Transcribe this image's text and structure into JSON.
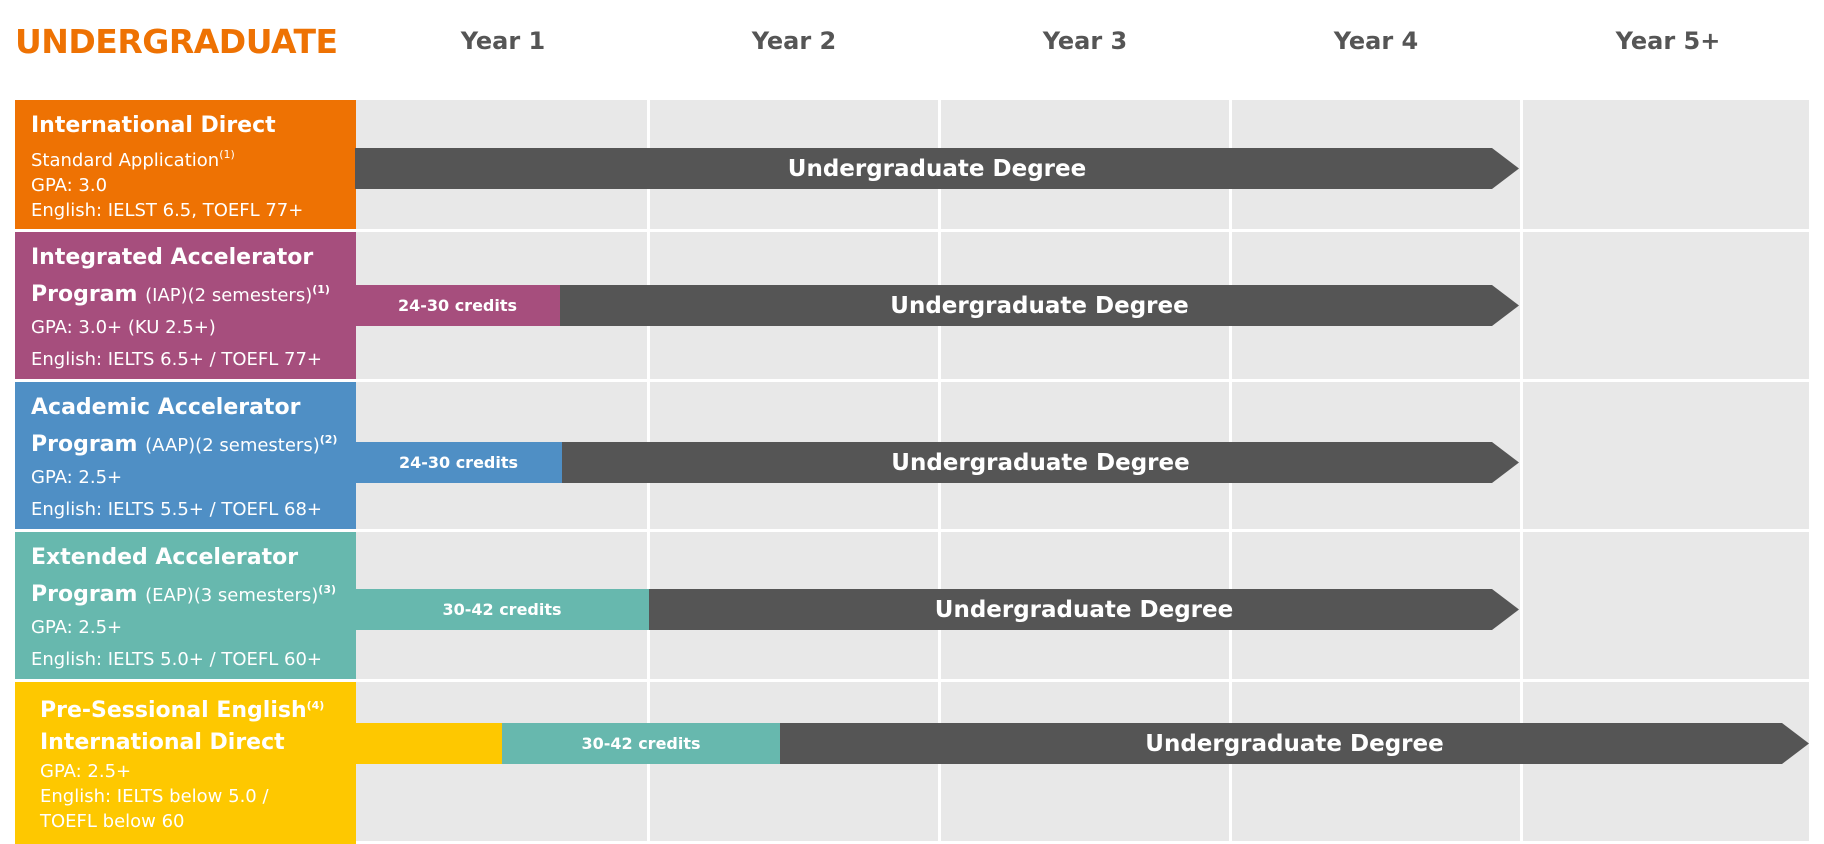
{
  "title": "UNDERGRADUATE",
  "years": [
    "Year 1",
    "Year 2",
    "Year 3",
    "Year 4",
    "Year 5+"
  ],
  "colors": {
    "title": "#ee7203",
    "international_direct": "#ee7203",
    "iap": "#a64e7d",
    "aap": "#4f8fc5",
    "eap": "#67b8ae",
    "pre_sessional": "#fec800",
    "degree_bar": "#555555",
    "grid": "#e8e8e8"
  },
  "rows": [
    {
      "name": "International Direct",
      "name_line2": "",
      "name_suffix": "",
      "sup": "",
      "line1": "Standard Application",
      "line1_sup": "(1)",
      "gpa": "GPA: 3.0",
      "english": "English: IELST 6.5, TOEFL 77+",
      "english2": "",
      "degree": "Undergraduate Degree"
    },
    {
      "name": "Integrated Accelerator",
      "name_line2": "Program",
      "name_suffix": "(IAP)(2 semesters)",
      "sup": "(1)",
      "gpa": "GPA: 3.0+ (KU 2.5+)",
      "english": "English: IELTS 6.5+ / TOEFL 77+",
      "english2": "",
      "credits": "24-30 credits",
      "degree": "Undergraduate Degree"
    },
    {
      "name": "Academic Accelerator",
      "name_line2": "Program",
      "name_suffix": "(AAP)(2 semesters)",
      "sup": "(2)",
      "gpa": "GPA: 2.5+",
      "english": "English: IELTS 5.5+ / TOEFL 68+",
      "english2": "",
      "credits": "24-30 credits",
      "degree": "Undergraduate Degree"
    },
    {
      "name": "Extended Accelerator",
      "name_line2": "Program",
      "name_suffix": "(EAP)(3 semesters)",
      "sup": "(3)",
      "gpa": "GPA: 2.5+",
      "english": "English: IELTS 5.0+ / TOEFL 60+",
      "english2": "",
      "credits": "30-42 credits",
      "degree": "Undergraduate Degree"
    },
    {
      "name": "Pre-Sessional English",
      "name_line2": "International Direct",
      "name_suffix": "",
      "sup": "(4)",
      "gpa": "GPA: 2.5+",
      "english": "English: IELTS below 5.0 /",
      "english2": "TOEFL below 60",
      "credits": "30-42 credits",
      "degree": "Undergraduate Degree"
    }
  ]
}
